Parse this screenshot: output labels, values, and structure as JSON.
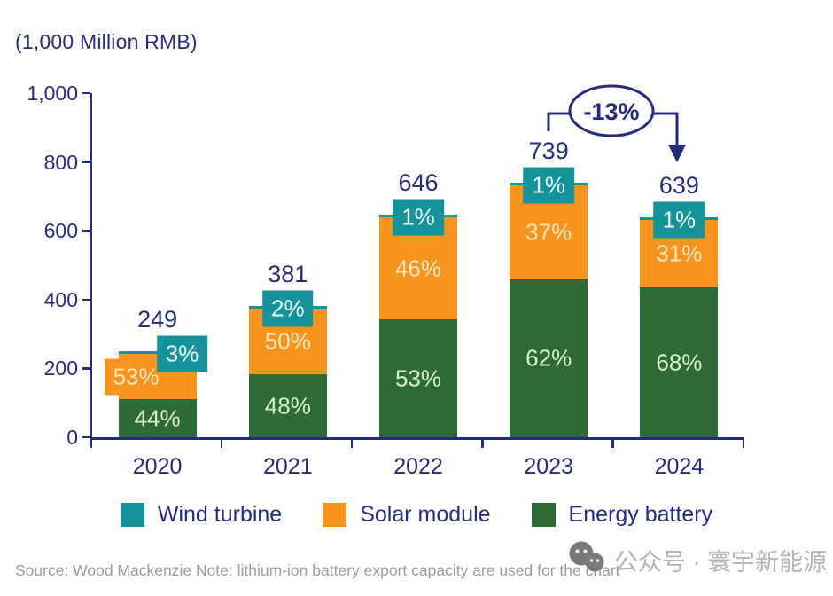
{
  "title": "(1,000 Million RMB)",
  "chart_data": {
    "type": "bar",
    "stacked": true,
    "title": "(1,000 Million RMB)",
    "categories": [
      "2020",
      "2021",
      "2022",
      "2023",
      "2024"
    ],
    "totals": [
      249,
      381,
      646,
      739,
      639
    ],
    "series": [
      {
        "name": "Energy battery",
        "color": "#2e6b34",
        "label_color": "#d9eed4",
        "pct": [
          44,
          48,
          53,
          62,
          68
        ]
      },
      {
        "name": "Solar module",
        "color": "#f7941e",
        "label_color": "#fbe7c2",
        "pct": [
          53,
          50,
          46,
          37,
          31
        ]
      },
      {
        "name": "Wind turbine",
        "color": "#16929b",
        "label_color": "#eafafa",
        "pct": [
          3,
          2,
          1,
          1,
          1
        ]
      }
    ],
    "ylim": [
      0,
      1000
    ],
    "ytick_step": 200,
    "yticks": [
      "0",
      "200",
      "400",
      "600",
      "800",
      "1,000"
    ],
    "grid": false,
    "legend_position": "bottom",
    "legend": [
      {
        "label": "Wind turbine",
        "color": "#16929b"
      },
      {
        "label": "Solar module",
        "color": "#f7941e"
      },
      {
        "label": "Energy battery",
        "color": "#2e6b34"
      }
    ],
    "annotation": {
      "label": "-13%",
      "from": "2023",
      "to": "2024"
    }
  },
  "colors": {
    "axis": "#252c7e",
    "annotation": "#252c7e"
  },
  "footer": {
    "source": "Source: Wood Mackenzie Note: lithium-ion battery export capacity are used for the chart"
  },
  "watermark": {
    "text": "公众号 · 寰宇新能源",
    "icon": "wechat-icon"
  }
}
